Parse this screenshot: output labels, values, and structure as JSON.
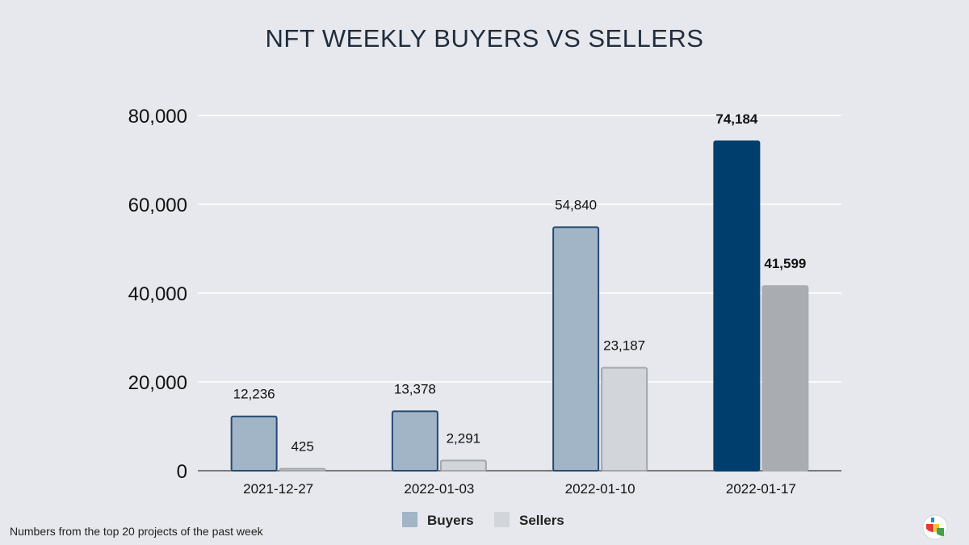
{
  "chart_data": {
    "type": "bar",
    "title": "NFT WEEKLY BUYERS VS SELLERS",
    "categories": [
      "2021-12-27",
      "2022-01-03",
      "2022-01-10",
      "2022-01-17"
    ],
    "series": [
      {
        "name": "Buyers",
        "values": [
          12236,
          13378,
          54840,
          74184
        ],
        "labels": [
          "12,236",
          "13,378",
          "54,840",
          "74,184"
        ]
      },
      {
        "name": "Sellers",
        "values": [
          425,
          2291,
          23187,
          41599
        ],
        "labels": [
          "425",
          "2,291",
          "23,187",
          "41,599"
        ]
      }
    ],
    "ylim": [
      0,
      80000
    ],
    "yticks": [
      0,
      20000,
      40000,
      60000,
      80000
    ],
    "ytick_labels": [
      "0",
      "20,000",
      "40,000",
      "60,000",
      "80,000"
    ],
    "grid": true,
    "legend_position": "bottom-center",
    "highlight_category_index": 3
  },
  "colors": {
    "buyers_fill": "#a2b5c7",
    "buyers_stroke": "#244a73",
    "sellers_fill": "#d2d5d9",
    "sellers_stroke": "#a3a6aa",
    "highlight_buyers": "#003f6d",
    "highlight_sellers": "#a9adb2",
    "gridline": "#ffffff",
    "axis": "#555555"
  },
  "footnote": "Numbers from the top 20 projects of the past week",
  "brand_icon": "colorful-logo-icon"
}
